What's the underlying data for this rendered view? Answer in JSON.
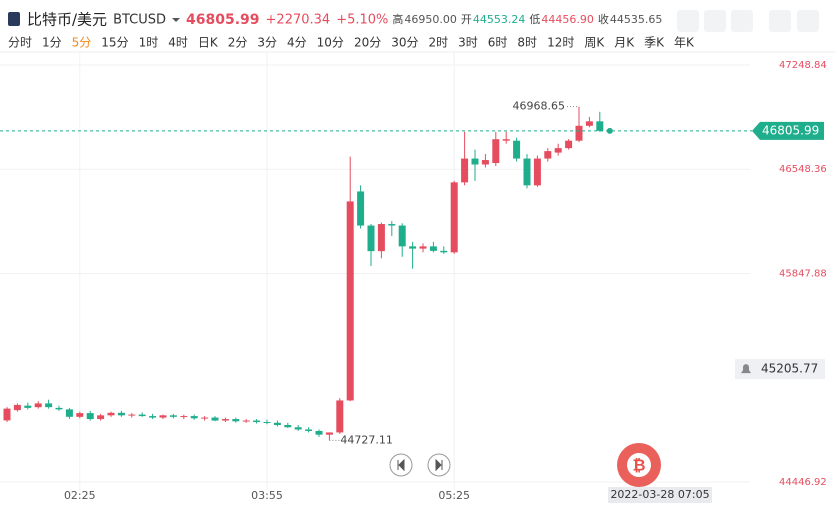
{
  "header": {
    "name": "比特币/美元",
    "symbol": "BTCUSD",
    "change": "+2270.34",
    "change_pct": "+5.10%",
    "stats": [
      {
        "label": "高",
        "value": "46950.00"
      },
      {
        "label": "开",
        "value": "44553.24"
      },
      {
        "label": "低",
        "value": "44456.90"
      },
      {
        "label": "收",
        "value": "44535.65"
      }
    ],
    "timeframes": [
      "分时",
      "1分",
      "5分",
      "15分",
      "1时",
      "4时",
      "日K",
      "2分",
      "3分",
      "4分",
      "10分",
      "20分",
      "30分",
      "2时",
      "3时",
      "6时",
      "8时",
      "12时",
      "周K",
      "月K",
      "季K",
      "年K"
    ],
    "active_timeframe": 2
  },
  "chart_data": {
    "type": "candlestick",
    "categories": [
      null,
      null,
      null,
      null,
      null,
      null,
      null,
      "02:25",
      null,
      null,
      null,
      null,
      null,
      null,
      null,
      null,
      null,
      null,
      null,
      null,
      null,
      null,
      null,
      null,
      null,
      "03:55",
      null,
      null,
      null,
      null,
      null,
      null,
      null,
      null,
      null,
      null,
      null,
      null,
      null,
      null,
      null,
      null,
      null,
      "05:25",
      null,
      null,
      null,
      null,
      null,
      null,
      null,
      null,
      null,
      null,
      null,
      null,
      null,
      null
    ],
    "open": [
      44861,
      44930,
      44960,
      44950,
      44975,
      44945,
      44935,
      44885,
      44910,
      44870,
      44895,
      44912,
      44895,
      44900,
      44890,
      44880,
      44895,
      44885,
      44890,
      44875,
      44880,
      44860,
      44870,
      44855,
      44860,
      44850,
      44845,
      44830,
      44815,
      44800,
      44790,
      44765,
      44780,
      44995,
      46399,
      46170,
      45998,
      46180,
      46170,
      46030,
      46015,
      46030,
      46000,
      45990,
      46460,
      46620,
      46580,
      46590,
      46740,
      46740,
      46620,
      46440,
      46620,
      46660,
      46690,
      46740,
      46840,
      46870
    ],
    "high": [
      44950,
      44975,
      44980,
      44990,
      45000,
      44960,
      44945,
      44920,
      44925,
      44905,
      44920,
      44925,
      44910,
      44915,
      44905,
      44900,
      44905,
      44900,
      44900,
      44890,
      44890,
      44880,
      44880,
      44870,
      44870,
      44865,
      44860,
      44845,
      44830,
      44815,
      44800,
      44780,
      45010,
      46633,
      46440,
      46180,
      46190,
      46200,
      46185,
      46060,
      46050,
      46060,
      46030,
      46470,
      46800,
      46680,
      46650,
      46800,
      46800,
      46760,
      46650,
      46640,
      46690,
      46720,
      46750,
      46968.65,
      46900,
      46934
    ],
    "low": [
      44850,
      44920,
      44935,
      44940,
      44940,
      44925,
      44870,
      44875,
      44860,
      44860,
      44885,
      44885,
      44880,
      44885,
      44870,
      44870,
      44875,
      44870,
      44865,
      44860,
      44855,
      44850,
      44845,
      44845,
      44840,
      44835,
      44820,
      44810,
      44790,
      44780,
      44750,
      44727.11,
      44770,
      44990,
      46150,
      45898,
      45950,
      46100,
      45960,
      45880,
      45990,
      45990,
      45980,
      45980,
      46440,
      46470,
      46560,
      46570,
      46720,
      46600,
      46420,
      46430,
      46600,
      46640,
      46680,
      46730,
      46830,
      46800
    ],
    "close": [
      44940,
      44965,
      44945,
      44975,
      44950,
      44935,
      44885,
      44910,
      44870,
      44895,
      44912,
      44895,
      44900,
      44890,
      44880,
      44895,
      44885,
      44890,
      44875,
      44880,
      44860,
      44870,
      44855,
      44860,
      44850,
      44845,
      44830,
      44815,
      44800,
      44790,
      44765,
      44780,
      44995,
      46332,
      46170,
      45998,
      46180,
      46170,
      46030,
      46015,
      46030,
      46000,
      45990,
      46460,
      46620,
      46580,
      46610,
      46750,
      46750,
      46620,
      46440,
      46620,
      46670,
      46690,
      46740,
      46840,
      46870,
      46805.99
    ],
    "up_color": "#e54d5f",
    "down_color": "#1fae8c",
    "ylim": [
      44393.4,
      47335.8
    ],
    "yticks": [
      47248.84,
      46548.36,
      45847.88,
      44446.92
    ],
    "alert_price": 45205.77,
    "crosshair_time": "2022-03-28 07:05",
    "grid": true
  }
}
